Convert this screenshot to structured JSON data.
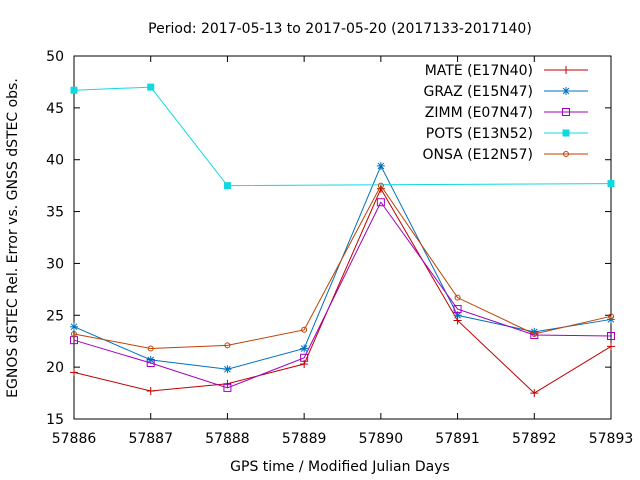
{
  "chart_data": {
    "type": "line",
    "title": "Period: 2017-05-13 to 2017-05-20 (2017133-2017140)",
    "xlabel": "GPS time / Modified Julian Days",
    "ylabel": "EGNOS dSTEC Rel. Error vs. GNSS dSTEC obs.",
    "xlim": [
      57886,
      57893
    ],
    "ylim": [
      15,
      50
    ],
    "x_ticks": [
      "57886",
      "57887",
      "57888",
      "57889",
      "57890",
      "57891",
      "57892",
      "57893"
    ],
    "y_ticks": [
      "15",
      "20",
      "25",
      "30",
      "35",
      "40",
      "45",
      "50"
    ],
    "legend_position": "top-right",
    "x": [
      57886,
      57887,
      57888,
      57889,
      57890,
      57891,
      57892,
      57893
    ],
    "series": [
      {
        "name": "MATE (E17N40)",
        "color": "#c00000",
        "marker": "plus",
        "values": [
          19.5,
          17.7,
          18.4,
          20.3,
          37.2,
          24.5,
          17.5,
          22.0
        ]
      },
      {
        "name": "GRAZ (E15N47)",
        "color": "#0070c0",
        "marker": "star",
        "values": [
          23.9,
          20.7,
          19.8,
          21.8,
          39.4,
          25.0,
          23.4,
          24.6
        ]
      },
      {
        "name": "ZIMM (E07N47)",
        "color": "#a000c0",
        "marker": "square-open",
        "values": [
          22.6,
          20.4,
          18.0,
          20.9,
          35.9,
          25.6,
          23.1,
          23.0
        ]
      },
      {
        "name": "POTS (E13N52)",
        "color": "#10d8e0",
        "marker": "square-filled",
        "values": [
          46.7,
          47.0,
          37.5,
          null,
          null,
          null,
          null,
          37.7
        ]
      },
      {
        "name": "ONSA (E12N57)",
        "color": "#c04000",
        "marker": "circle-open",
        "values": [
          23.2,
          21.8,
          22.1,
          23.6,
          37.5,
          26.7,
          23.2,
          24.9
        ]
      }
    ]
  }
}
